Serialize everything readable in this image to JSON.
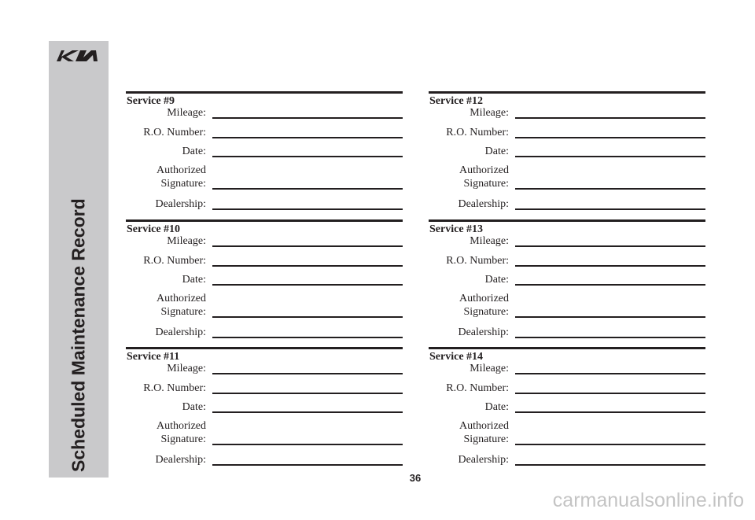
{
  "sidebar": {
    "title": "Scheduled Maintenance Record"
  },
  "services": [
    {
      "title": "Service #9",
      "fields": [
        "Mileage:",
        "R.O. Number:",
        "Date:",
        "Authorized Signature:",
        "Dealership:"
      ]
    },
    {
      "title": "Service #10",
      "fields": [
        "Mileage:",
        "R.O. Number:",
        "Date:",
        "Authorized Signature:",
        "Dealership:"
      ]
    },
    {
      "title": "Service #11",
      "fields": [
        "Mileage:",
        "R.O. Number:",
        "Date:",
        "Authorized Signature:",
        "Dealership:"
      ]
    },
    {
      "title": "Service #12",
      "fields": [
        "Mileage:",
        "R.O. Number:",
        "Date:",
        "Authorized Signature:",
        "Dealership:"
      ]
    },
    {
      "title": "Service #13",
      "fields": [
        "Mileage:",
        "R.O. Number:",
        "Date:",
        "Authorized Signature:",
        "Dealership:"
      ]
    },
    {
      "title": "Service #14",
      "fields": [
        "Mileage:",
        "R.O. Number:",
        "Date:",
        "Authorized Signature:",
        "Dealership:"
      ]
    }
  ],
  "page_number": "36",
  "watermark": "carmanualsonline.info"
}
